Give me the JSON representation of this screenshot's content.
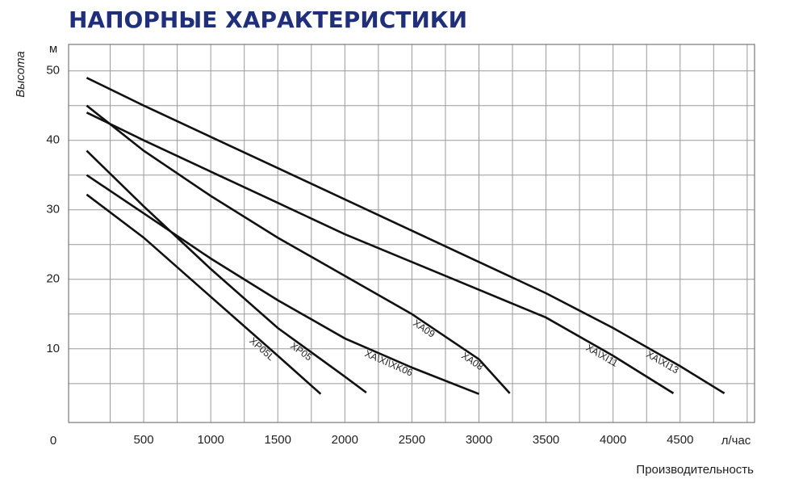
{
  "chart_data": {
    "type": "line",
    "title": "НАПОРНЫЕ ХАРАКТЕРИСТИКИ",
    "y_label": "Высота",
    "y_unit": "м",
    "x_label": "Производительность",
    "x_unit": "л/час",
    "origin_label": "0",
    "xlim": [
      -60,
      5055
    ],
    "ylim": [
      -0.6,
      53.8
    ],
    "xticks": [
      500,
      1000,
      1500,
      2000,
      2500,
      3000,
      3500,
      4000,
      4500
    ],
    "yticks": [
      10,
      20,
      30,
      40,
      50
    ],
    "x_minor_ticks": [
      250,
      750,
      1250,
      1750,
      2250,
      2750,
      3250,
      3750,
      4250,
      4750,
      5000
    ],
    "y_minor_ticks": [
      5,
      15,
      25,
      35,
      45
    ],
    "grid": true,
    "series": [
      {
        "labels": [
          "XP05L"
        ],
        "color": "#111111",
        "x": [
          75,
          500,
          1000,
          1500,
          1820
        ],
        "values": [
          32.2,
          26,
          17.5,
          9,
          3.5
        ]
      },
      {
        "labels": [
          "XP05"
        ],
        "color": "#111111",
        "x": [
          75,
          500,
          1000,
          1500,
          2000,
          2160
        ],
        "values": [
          38.5,
          30.5,
          21.5,
          13,
          6,
          3.7
        ]
      },
      {
        "labels": [
          "XA\\XI\\XK06"
        ],
        "color": "#111111",
        "x": [
          75,
          500,
          1000,
          1500,
          2000,
          2500,
          3000
        ],
        "values": [
          35,
          29.5,
          23,
          17,
          11.5,
          7.3,
          3.5
        ]
      },
      {
        "labels": [
          "XA09",
          "XA08"
        ],
        "color": "#111111",
        "x": [
          75,
          500,
          1000,
          1500,
          2000,
          2500,
          3000,
          3230
        ],
        "values": [
          45,
          38.5,
          32,
          26,
          20.5,
          15,
          8.5,
          3.6
        ]
      },
      {
        "labels": [
          "XA\\XI11"
        ],
        "color": "#111111",
        "x": [
          75,
          500,
          1000,
          1500,
          2000,
          2500,
          3000,
          3500,
          4000,
          4450
        ],
        "values": [
          44,
          40,
          35.5,
          31,
          26.5,
          22.5,
          18.5,
          14.5,
          9,
          3.6
        ]
      },
      {
        "labels": [
          "XA\\XI13"
        ],
        "color": "#111111",
        "x": [
          75,
          500,
          1000,
          1500,
          2000,
          2500,
          3000,
          3500,
          4000,
          4500,
          4830
        ],
        "values": [
          49,
          45,
          40.5,
          36,
          31.5,
          27,
          22.5,
          18,
          13,
          7.5,
          3.6
        ]
      }
    ]
  }
}
